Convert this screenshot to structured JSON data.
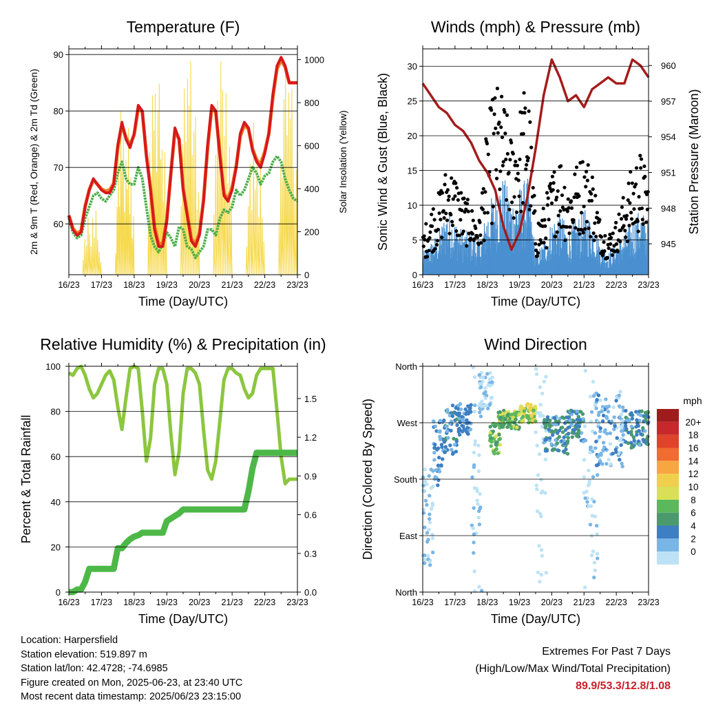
{
  "colors": {
    "temp_2m": "#d7191c",
    "temp_9m": "#f07a24",
    "dewpoint": "#4daf4a",
    "solar": "#f6da4f",
    "wind_speed": "#4a90d0",
    "wind_gust": "#000000",
    "pressure": "#a51c1c",
    "rh": "#8cc63f",
    "precip": "#4db848"
  },
  "chart_data": [
    {
      "type": "line",
      "title": "Temperature (F)",
      "xlabel": "Time (Day/UTC)",
      "ylabel": "2m & 9m T (Red, Orange) & 2m Td (Green)",
      "y2label": "Solar Insolation (Yellow)",
      "x_ticks": [
        "16/23",
        "17/23",
        "18/23",
        "19/23",
        "20/23",
        "21/23",
        "22/23",
        "23/23"
      ],
      "ylim": [
        51,
        91
      ],
      "y_ticks": [
        60,
        70,
        80,
        90
      ],
      "y2lim": [
        0,
        1050
      ],
      "y2_ticks": [
        0,
        200,
        400,
        600,
        800,
        1000
      ],
      "grid": "horizontal",
      "x_hours": [
        0,
        3,
        6,
        9,
        12,
        15,
        18,
        21,
        24,
        27,
        30,
        33,
        36,
        39,
        42,
        45,
        48,
        51,
        54,
        57,
        60,
        63,
        66,
        69,
        72,
        75,
        78,
        81,
        84,
        87,
        90,
        93,
        96,
        99,
        102,
        105,
        108,
        111,
        114,
        117,
        120,
        123,
        126,
        129,
        132,
        135,
        138,
        141,
        144,
        147,
        150,
        153,
        156,
        159,
        162,
        165,
        168
      ],
      "series": [
        {
          "name": "2m T",
          "values": [
            61.5,
            59,
            58,
            58.5,
            63,
            66,
            68,
            67,
            66,
            65.5,
            65.5,
            67,
            74,
            78,
            75,
            73.5,
            76,
            81,
            80,
            72,
            66,
            59,
            56,
            56,
            60.5,
            69,
            77,
            75,
            66,
            61.5,
            57,
            56,
            58,
            64,
            74,
            81,
            80,
            72,
            65,
            64,
            66,
            70,
            76,
            78,
            77,
            73,
            71,
            70,
            72.5,
            76,
            83,
            88,
            89.5,
            88,
            85,
            85,
            85
          ]
        },
        {
          "name": "9m T",
          "values": [
            61.5,
            59.2,
            58.3,
            58.8,
            63.2,
            66,
            67.8,
            67,
            66.2,
            65.8,
            66,
            67.2,
            73.5,
            77.5,
            75.3,
            74,
            75.8,
            80.5,
            79.8,
            72.3,
            66.3,
            59.5,
            56.5,
            56.5,
            60.8,
            69,
            76.5,
            75,
            66.4,
            61.8,
            57.4,
            56.4,
            58.4,
            64.2,
            73.5,
            80.5,
            79.8,
            72.3,
            65.4,
            64.4,
            66.4,
            70.2,
            75.5,
            77.5,
            76.8,
            73.3,
            71.4,
            70.5,
            72.8,
            76,
            82.5,
            87.5,
            89,
            87.8,
            85,
            85,
            85
          ]
        },
        {
          "name": "2m Td",
          "values": [
            61,
            58.5,
            57.5,
            58,
            61,
            63,
            65,
            65.5,
            64.5,
            64,
            65,
            66,
            69,
            71,
            68,
            67,
            67,
            70,
            68,
            63,
            58,
            56,
            55,
            56.5,
            58.5,
            57.5,
            56,
            59.5,
            59,
            56,
            55.5,
            54,
            55,
            56,
            59,
            59,
            58,
            61,
            62.5,
            62,
            63,
            66,
            65,
            66,
            68,
            70,
            69,
            67,
            68.5,
            69,
            71,
            72,
            71,
            68,
            66,
            64.5,
            64
          ]
        },
        {
          "name": "Solar",
          "days": [
            {
              "peak": 330,
              "spikes": [
                0.35,
                0.7,
                0.5,
                0.9,
                0.6,
                0.4,
                0.8,
                0.55,
                1.0,
                0.6,
                0.45,
                0.3
              ]
            },
            {
              "peak": 830,
              "spikes": [
                0.2,
                0.55,
                0.85,
                0.45,
                1.0,
                0.6,
                0.8,
                0.35,
                0.65,
                0.5,
                0.9,
                0.4,
                0.7,
                0.3,
                0.55
              ]
            },
            {
              "peak": 960,
              "spikes": [
                0.4,
                0.85,
                0.55,
                1.0,
                0.75,
                0.9,
                0.5,
                0.8,
                0.95,
                0.6,
                0.7,
                0.45,
                0.85,
                0.35
              ]
            },
            {
              "peak": 1050,
              "spikes": [
                0.5,
                0.8,
                1.0,
                0.65,
                0.9,
                0.75,
                0.95,
                0.55,
                0.7,
                0.85,
                0.4,
                0.6
              ]
            },
            {
              "peak": 1010,
              "spikes": [
                0.45,
                0.75,
                0.95,
                0.6,
                1.0,
                0.85,
                0.65,
                0.9,
                0.5,
                0.8,
                0.55
              ]
            },
            {
              "peak": 720,
              "spikes": [
                0.3,
                0.6,
                0.85,
                0.45,
                1.0,
                0.55,
                0.75,
                0.4,
                0.9,
                0.5,
                0.35
              ]
            },
            {
              "peak": 1000,
              "spikes": [
                0.4,
                0.7,
                0.55,
                0.9,
                1.0,
                0.65,
                0.85,
                0.75,
                0.95,
                0.6,
                0.5,
                0.8
              ]
            }
          ]
        }
      ]
    },
    {
      "type": "scatter",
      "title": "Winds (mph) & Pressure (mb)",
      "xlabel": "Time (Day/UTC)",
      "ylabel": "Sonic Wind & Gust (Blue, Black)",
      "y2label": "Station Pressure (Maroon)",
      "x_ticks": [
        "16/23",
        "17/23",
        "18/23",
        "19/23",
        "20/23",
        "21/23",
        "22/23",
        "23/23"
      ],
      "ylim": [
        0,
        32.5
      ],
      "y_ticks": [
        0,
        5,
        10,
        15,
        20,
        25,
        30
      ],
      "y2lim": [
        942.4,
        961.4
      ],
      "y2_ticks": [
        945,
        948,
        951,
        954,
        957,
        960
      ],
      "grid": "horizontal",
      "wind_x_hours": [
        0,
        6,
        12,
        18,
        24,
        30,
        36,
        42,
        48,
        54,
        60,
        66,
        72,
        78,
        84,
        90,
        96,
        102,
        108,
        114,
        120,
        126,
        132,
        138,
        144,
        150,
        156,
        162,
        168
      ],
      "wind_mean": [
        2,
        3,
        4,
        6,
        5,
        4,
        4,
        3,
        6,
        8,
        9,
        7,
        8,
        9,
        2,
        3,
        5,
        6,
        4,
        5,
        6,
        5,
        3,
        2,
        3,
        4,
        5,
        6,
        5
      ],
      "gust_max": [
        6,
        10,
        12,
        16,
        15,
        12,
        10,
        8,
        22,
        28,
        26,
        20,
        24,
        30,
        8,
        10,
        15,
        18,
        14,
        16,
        18,
        16,
        8,
        6,
        8,
        12,
        16,
        18,
        14
      ],
      "pressure_x_hours": [
        0,
        6,
        12,
        18,
        24,
        30,
        36,
        42,
        48,
        54,
        60,
        66,
        72,
        78,
        84,
        90,
        96,
        102,
        108,
        114,
        120,
        126,
        132,
        138,
        144,
        150,
        156,
        162,
        168
      ],
      "pressure": [
        958.5,
        957.5,
        956.5,
        956,
        955,
        954.5,
        953.5,
        952,
        951,
        949.5,
        946.5,
        944.5,
        946,
        949,
        953,
        957.5,
        960.5,
        959,
        957,
        957.5,
        956.5,
        958,
        958.5,
        959,
        958.5,
        958.5,
        960.5,
        960,
        959
      ]
    },
    {
      "type": "line",
      "title": "Relative Humidity (%) & Precipitation (in)",
      "xlabel": "Time (Day/UTC)",
      "ylabel": "Percent & Total Rainfall",
      "x_ticks": [
        "16/23",
        "17/23",
        "18/23",
        "19/23",
        "20/23",
        "21/23",
        "22/23",
        "23/23"
      ],
      "ylim": [
        0,
        100
      ],
      "y_ticks": [
        0,
        20,
        40,
        60,
        80,
        100
      ],
      "y2lim": [
        0,
        1.75
      ],
      "y2_ticks": [
        "0.0",
        "0.3",
        "0.6",
        "0.9",
        "1.2",
        "1.5"
      ],
      "grid": "horizontal",
      "x_hours": [
        0,
        3,
        6,
        9,
        12,
        15,
        18,
        21,
        24,
        27,
        30,
        33,
        36,
        39,
        42,
        45,
        48,
        51,
        54,
        57,
        60,
        63,
        66,
        69,
        72,
        75,
        78,
        81,
        84,
        87,
        90,
        93,
        96,
        99,
        102,
        105,
        108,
        111,
        114,
        117,
        120,
        123,
        126,
        129,
        132,
        135,
        138,
        141,
        144,
        147,
        150,
        153,
        156,
        159,
        162,
        165,
        168
      ],
      "series": [
        {
          "name": "RH",
          "values": [
            97,
            96,
            99,
            100,
            96,
            90,
            86,
            88,
            92,
            96,
            98,
            94,
            82,
            72,
            86,
            99,
            100,
            99,
            80,
            58,
            68,
            92,
            99,
            99,
            92,
            70,
            52,
            62,
            88,
            99,
            99,
            97,
            92,
            72,
            54,
            50,
            58,
            76,
            94,
            99,
            99,
            97,
            96,
            90,
            86,
            88,
            96,
            99,
            99,
            99,
            99,
            80,
            60,
            48,
            50,
            50,
            50
          ]
        },
        {
          "name": "Precip",
          "values": [
            0,
            0,
            0.02,
            0.02,
            0.08,
            0.18,
            0.18,
            0.18,
            0.18,
            0.18,
            0.18,
            0.18,
            0.34,
            0.34,
            0.38,
            0.41,
            0.43,
            0.44,
            0.46,
            0.46,
            0.46,
            0.46,
            0.46,
            0.46,
            0.55,
            0.57,
            0.59,
            0.61,
            0.64,
            0.64,
            0.64,
            0.64,
            0.64,
            0.64,
            0.64,
            0.64,
            0.64,
            0.64,
            0.64,
            0.64,
            0.64,
            0.64,
            0.64,
            0.64,
            0.78,
            0.96,
            1.08,
            1.08,
            1.08,
            1.08,
            1.08,
            1.08,
            1.08,
            1.08,
            1.08,
            1.08,
            1.08
          ]
        }
      ]
    },
    {
      "type": "scatter",
      "title": "Wind Direction",
      "xlabel": "Time (Day/UTC)",
      "ylabel": "Direction (Colored By Speed)",
      "x_ticks": [
        "16/23",
        "17/23",
        "18/23",
        "19/23",
        "20/23",
        "21/23",
        "22/23",
        "23/23"
      ],
      "y_ticks": [
        "North",
        "East",
        "South",
        "West",
        "North"
      ],
      "ylim": [
        0,
        360
      ],
      "grid": "horizontal",
      "colorbar_title": "mph",
      "colorbar_labels": [
        "20+",
        "18",
        "16",
        "14",
        "12",
        "10",
        "8",
        "6",
        "4",
        "2",
        "0"
      ],
      "colorbar_colors": [
        "#a01c1c",
        "#c8282c",
        "#e0432a",
        "#f26b30",
        "#f8a640",
        "#f0d04a",
        "#d9e055",
        "#5cb85c",
        "#4a9a6e",
        "#3d7fc2",
        "#79b6e5",
        "#bde2f5"
      ],
      "clusters": [
        {
          "h0": 0,
          "h1": 8,
          "dir0": 40,
          "dir1": 200,
          "spd0": 0,
          "spd1": 4
        },
        {
          "h0": 8,
          "h1": 16,
          "dir0": 170,
          "dir1": 280,
          "spd0": 2,
          "spd1": 6
        },
        {
          "h0": 16,
          "h1": 26,
          "dir0": 220,
          "dir1": 300,
          "spd0": 3,
          "spd1": 7
        },
        {
          "h0": 26,
          "h1": 36,
          "dir0": 250,
          "dir1": 300,
          "spd0": 3,
          "spd1": 6
        },
        {
          "h0": 36,
          "h1": 44,
          "dir0": 0,
          "dir1": 360,
          "spd0": 0,
          "spd1": 3
        },
        {
          "h0": 42,
          "h1": 52,
          "dir0": 290,
          "dir1": 350,
          "spd0": 0,
          "spd1": 3
        },
        {
          "h0": 50,
          "h1": 58,
          "dir0": 220,
          "dir1": 270,
          "spd0": 7,
          "spd1": 11
        },
        {
          "h0": 56,
          "h1": 72,
          "dir0": 260,
          "dir1": 290,
          "spd0": 6,
          "spd1": 12
        },
        {
          "h0": 72,
          "h1": 84,
          "dir0": 270,
          "dir1": 300,
          "spd0": 8,
          "spd1": 13
        },
        {
          "h0": 84,
          "h1": 92,
          "dir0": 0,
          "dir1": 360,
          "spd0": 0,
          "spd1": 2
        },
        {
          "h0": 90,
          "h1": 108,
          "dir0": 220,
          "dir1": 280,
          "spd0": 2,
          "spd1": 8
        },
        {
          "h0": 108,
          "h1": 120,
          "dir0": 240,
          "dir1": 290,
          "spd0": 3,
          "spd1": 7
        },
        {
          "h0": 120,
          "h1": 130,
          "dir0": 0,
          "dir1": 360,
          "spd0": 0,
          "spd1": 3
        },
        {
          "h0": 128,
          "h1": 150,
          "dir0": 200,
          "dir1": 320,
          "spd0": 1,
          "spd1": 5
        },
        {
          "h0": 150,
          "h1": 168,
          "dir0": 230,
          "dir1": 290,
          "spd0": 3,
          "spd1": 8
        }
      ]
    }
  ],
  "info": {
    "location": "Location: Harpersfield",
    "elevation": "Station elevation: 519.897 m",
    "latlon": "Station lat/lon: 42.4728; -74.6985",
    "created": "Figure created on Mon, 2025-06-23, at 23:40 UTC",
    "recent": "Most recent data timestamp: 2025/06/23 23:15:00"
  },
  "extremes": {
    "line1": "Extremes For Past 7 Days",
    "line2": "(High/Low/Max Wind/Total Precipitation)",
    "values": "89.9/53.3/12.8/1.08"
  }
}
